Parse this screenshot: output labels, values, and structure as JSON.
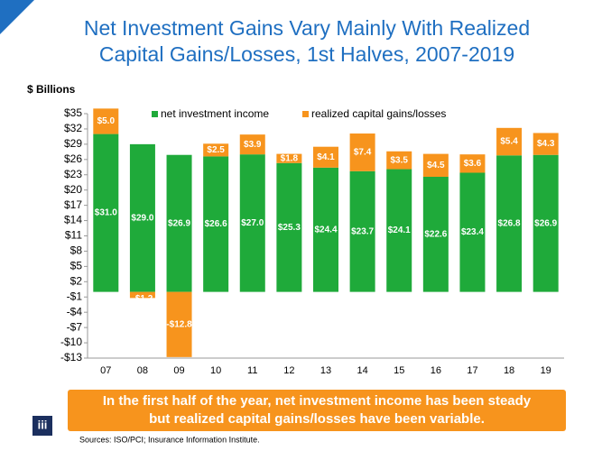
{
  "chart_data": {
    "type": "bar",
    "stacked": true,
    "title": [
      "Net Investment Gains Vary Mainly With Realized",
      "Capital Gains/Losses, 1st Halves, 2007-2019"
    ],
    "ylabel": "$ Billions",
    "categories": [
      "07",
      "08",
      "09",
      "10",
      "11",
      "12",
      "13",
      "14",
      "15",
      "16",
      "17",
      "18",
      "19"
    ],
    "series": [
      {
        "name": "net investment income",
        "color": "#1faa3a",
        "values": [
          31.0,
          29.0,
          26.9,
          26.6,
          27.0,
          25.3,
          24.4,
          23.7,
          24.1,
          22.6,
          23.4,
          26.8,
          26.9
        ],
        "value_labels": [
          "$31.0",
          "$29.0",
          "$26.9",
          "$26.6",
          "$27.0",
          "$25.3",
          "$24.4",
          "$23.7",
          "$24.1",
          "$22.6",
          "$23.4",
          "$26.8",
          "$26.9"
        ]
      },
      {
        "name": "realized capital gains/losses",
        "color": "#f7941d",
        "values": [
          5.0,
          -1.2,
          -12.8,
          2.5,
          3.9,
          1.8,
          4.1,
          7.4,
          3.5,
          4.5,
          3.6,
          5.4,
          4.3
        ],
        "value_labels": [
          "$5.0",
          "-$1.2",
          "-$12.8",
          "$2.5",
          "$3.9",
          "$1.8",
          "$4.1",
          "$7.4",
          "$3.5",
          "$4.5",
          "$3.6",
          "$5.4",
          "$4.3"
        ]
      }
    ],
    "ylim": [
      -13,
      35
    ],
    "yticks": [
      {
        "value": 35,
        "label": "$35"
      },
      {
        "value": 32,
        "label": "$32"
      },
      {
        "value": 29,
        "label": "$29"
      },
      {
        "value": 26,
        "label": "$26"
      },
      {
        "value": 23,
        "label": "$23"
      },
      {
        "value": 20,
        "label": "$20"
      },
      {
        "value": 17,
        "label": "$17"
      },
      {
        "value": 14,
        "label": "$14"
      },
      {
        "value": 11,
        "label": "$11"
      },
      {
        "value": 8,
        "label": "$8"
      },
      {
        "value": 5,
        "label": "$5"
      },
      {
        "value": 2,
        "label": "$2"
      },
      {
        "value": -1,
        "label": "-$1"
      },
      {
        "value": -4,
        "label": "-$4"
      },
      {
        "value": -7,
        "label": "-$7"
      },
      {
        "value": -10,
        "label": "-$10"
      },
      {
        "value": -13,
        "label": "-$13"
      }
    ],
    "grid": false,
    "legend": "top",
    "annotation": [
      "In the first half of the year, net investment income has been steady",
      "but realized capital gains/losses have been variable."
    ],
    "source": "Sources: ISO/PCI;  Insurance Information Institute.",
    "logo": "iii"
  }
}
